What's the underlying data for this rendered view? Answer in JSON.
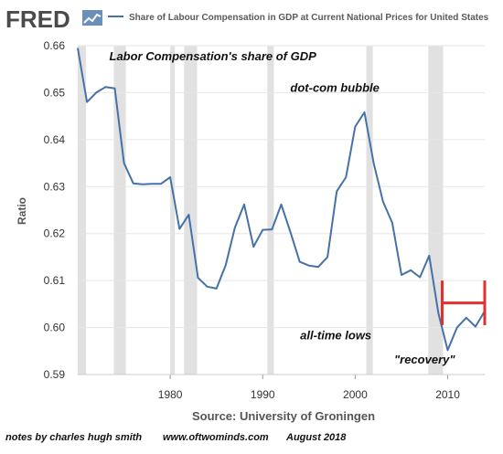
{
  "logo": {
    "text": "FRED"
  },
  "chart_data": {
    "type": "line",
    "title": "Share of Labour Compensation in GDP at Current National Prices for United States",
    "ylabel": "Ratio",
    "source": "Source: University of Groningen",
    "xlim": [
      1970,
      2014
    ],
    "ylim": [
      0.59,
      0.66
    ],
    "y_ticks": [
      "0.59",
      "0.60",
      "0.61",
      "0.62",
      "0.63",
      "0.64",
      "0.65",
      "0.66"
    ],
    "x_ticks": [
      "1980",
      "1990",
      "2000",
      "2010"
    ],
    "grid": true,
    "series": [
      {
        "name": "Share of Labour Compensation in GDP at Current National Prices for United States",
        "color": "#4572a7",
        "x": [
          1970,
          1971,
          1972,
          1973,
          1974,
          1975,
          1976,
          1977,
          1978,
          1979,
          1980,
          1981,
          1982,
          1983,
          1984,
          1985,
          1986,
          1987,
          1988,
          1989,
          1990,
          1991,
          1992,
          1993,
          1994,
          1995,
          1996,
          1997,
          1998,
          1999,
          2000,
          2001,
          2002,
          2003,
          2004,
          2005,
          2006,
          2007,
          2008,
          2009,
          2010,
          2011,
          2012,
          2013,
          2014
        ],
        "y": [
          0.6595,
          0.648,
          0.65,
          0.6512,
          0.6509,
          0.635,
          0.6307,
          0.6305,
          0.6306,
          0.6306,
          0.632,
          0.621,
          0.624,
          0.6106,
          0.6087,
          0.6083,
          0.6133,
          0.6213,
          0.6262,
          0.6172,
          0.6208,
          0.6209,
          0.6262,
          0.6203,
          0.614,
          0.6132,
          0.6129,
          0.615,
          0.629,
          0.632,
          0.6428,
          0.6458,
          0.635,
          0.6268,
          0.6223,
          0.6112,
          0.6122,
          0.6107,
          0.6153,
          0.603,
          0.5952,
          0.6,
          0.6021,
          0.6002,
          0.6035
        ]
      }
    ],
    "recessions": [
      [
        1970.0,
        1970.9
      ],
      [
        1973.9,
        1975.2
      ],
      [
        1980.0,
        1980.5
      ],
      [
        1981.5,
        1982.9
      ],
      [
        1990.5,
        1991.2
      ],
      [
        2001.2,
        2001.9
      ],
      [
        2007.9,
        2009.5
      ]
    ],
    "recession_color": "#e1e1e1",
    "bracket": {
      "color": "#e03030",
      "x_range": [
        2009.4,
        2014.0
      ],
      "y_range": [
        0.6005,
        0.61
      ]
    },
    "annotations": [
      {
        "text": "Labor Compensation's share of GDP",
        "x": 1984.6,
        "y": 0.6569
      },
      {
        "text": "dot-com bubble",
        "x": 1997.8,
        "y": 0.6502
      },
      {
        "text": "all-time lows",
        "x": 1997.9,
        "y": 0.5975
      },
      {
        "text": "\"recovery\"",
        "x": 2007.5,
        "y": 0.5923
      }
    ]
  },
  "footer": {
    "author": "notes by charles hugh smith",
    "url": "www.oftwominds.com",
    "date": "August 2018"
  }
}
